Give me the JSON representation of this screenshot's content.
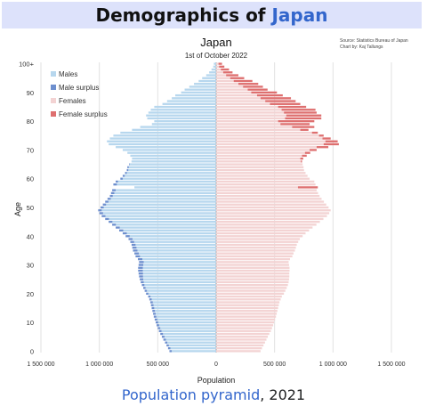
{
  "banner": {
    "title_prefix": "Demographics of ",
    "title_link": "Japan"
  },
  "caption": {
    "link": "Population pyramid",
    "rest": ", 2021"
  },
  "chart_data": {
    "type": "population-pyramid",
    "title": "Japan",
    "subtitle": "1st of October 2022",
    "source_lines": [
      "Source: Statistics Bureau of Japan",
      "Chart by: Kaj Tallungs"
    ],
    "xlabel": "Population",
    "ylabel": "Age",
    "xlim": [
      -1500000,
      1500000
    ],
    "x_ticks": [
      -1500000,
      -1000000,
      -500000,
      0,
      500000,
      1000000,
      1500000
    ],
    "x_tick_labels": [
      "1 500 000",
      "1 000 000",
      "500 000",
      "0",
      "500 000",
      "1 000 000",
      "1 500 000"
    ],
    "y_ticks": [
      0,
      10,
      20,
      30,
      40,
      50,
      60,
      70,
      80,
      90,
      100
    ],
    "y_tick_labels": [
      "0",
      "10",
      "20",
      "30",
      "40",
      "50",
      "60",
      "70",
      "80",
      "90",
      "100+"
    ],
    "legend": [
      {
        "label": "Males",
        "color": "#b7d7ee"
      },
      {
        "label": "Male surplus",
        "color": "#6d8fce"
      },
      {
        "label": "Females",
        "color": "#f3d3d3"
      },
      {
        "label": "Female surplus",
        "color": "#de6f6f"
      }
    ],
    "legend_position": "top-left",
    "grid": "vertical",
    "age_groups": [
      "0",
      "1",
      "2",
      "3",
      "4",
      "5",
      "6",
      "7",
      "8",
      "9",
      "10",
      "11",
      "12",
      "13",
      "14",
      "15",
      "16",
      "17",
      "18",
      "19",
      "20",
      "21",
      "22",
      "23",
      "24",
      "25",
      "26",
      "27",
      "28",
      "29",
      "30",
      "31",
      "32",
      "33",
      "34",
      "35",
      "36",
      "37",
      "38",
      "39",
      "40",
      "41",
      "42",
      "43",
      "44",
      "45",
      "46",
      "47",
      "48",
      "49",
      "50",
      "51",
      "52",
      "53",
      "54",
      "55",
      "56",
      "57",
      "58",
      "59",
      "60",
      "61",
      "62",
      "63",
      "64",
      "65",
      "66",
      "67",
      "68",
      "69",
      "70",
      "71",
      "72",
      "73",
      "74",
      "75",
      "76",
      "77",
      "78",
      "79",
      "80",
      "81",
      "82",
      "83",
      "84",
      "85",
      "86",
      "87",
      "88",
      "89",
      "90",
      "91",
      "92",
      "93",
      "94",
      "95",
      "96",
      "97",
      "98",
      "99",
      "100+"
    ],
    "males": [
      400000,
      412000,
      425000,
      438000,
      452000,
      465000,
      478000,
      490000,
      500000,
      510000,
      518000,
      526000,
      534000,
      540000,
      546000,
      552000,
      558000,
      564000,
      572000,
      582000,
      600000,
      612000,
      624000,
      636000,
      646000,
      654000,
      660000,
      664000,
      668000,
      668000,
      664000,
      660000,
      670000,
      690000,
      700000,
      712000,
      718000,
      724000,
      735000,
      750000,
      775000,
      800000,
      830000,
      860000,
      890000,
      920000,
      950000,
      980000,
      1000000,
      1010000,
      990000,
      970000,
      950000,
      930000,
      910000,
      900000,
      890000,
      700000,
      880000,
      860000,
      820000,
      800000,
      780000,
      765000,
      760000,
      745000,
      725000,
      720000,
      735000,
      760000,
      800000,
      860000,
      920000,
      935000,
      910000,
      880000,
      820000,
      720000,
      650000,
      550000,
      530000,
      590000,
      600000,
      580000,
      560000,
      530000,
      460000,
      420000,
      380000,
      350000,
      300000,
      270000,
      230000,
      190000,
      150000,
      120000,
      85000,
      60000,
      40000,
      25000,
      20000
    ],
    "females": [
      380000,
      392000,
      405000,
      418000,
      430000,
      442000,
      455000,
      468000,
      478000,
      488000,
      496000,
      504000,
      512000,
      518000,
      524000,
      530000,
      536000,
      542000,
      552000,
      562000,
      580000,
      592000,
      604000,
      614000,
      620000,
      624000,
      626000,
      626000,
      628000,
      628000,
      624000,
      620000,
      632000,
      652000,
      662000,
      674000,
      682000,
      690000,
      702000,
      716000,
      740000,
      765000,
      795000,
      825000,
      858000,
      888000,
      918000,
      948000,
      968000,
      980000,
      962000,
      942000,
      922000,
      902000,
      885000,
      872000,
      860000,
      870000,
      850000,
      840000,
      800000,
      782000,
      765000,
      752000,
      748000,
      740000,
      735000,
      745000,
      775000,
      805000,
      860000,
      960000,
      1050000,
      1040000,
      980000,
      920000,
      870000,
      790000,
      840000,
      800000,
      840000,
      900000,
      900000,
      860000,
      850000,
      770000,
      720000,
      680000,
      640000,
      570000,
      520000,
      440000,
      400000,
      360000,
      310000,
      240000,
      190000,
      140000,
      110000,
      70000,
      50000
    ]
  }
}
